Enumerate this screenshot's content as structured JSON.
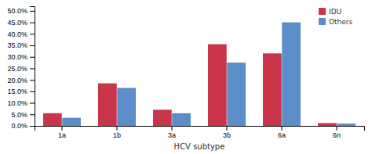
{
  "chart_data": {
    "type": "bar",
    "xlabel": "HCV subtype",
    "categories": [
      "1a",
      "1b",
      "3a",
      "3b",
      "6a",
      "6n"
    ],
    "series": [
      {
        "name": "IDU",
        "color": "#C9364A",
        "values": [
          5.5,
          18.5,
          7.0,
          35.5,
          31.5,
          1.2
        ]
      },
      {
        "name": "Others",
        "color": "#5B8DC8",
        "values": [
          3.5,
          16.5,
          5.5,
          27.5,
          45.0,
          1.0
        ]
      }
    ],
    "ylim": [
      0,
      52
    ],
    "yticks": [
      {
        "value": 0,
        "label": "0.0%"
      },
      {
        "value": 5,
        "label": "5.0%"
      },
      {
        "value": 10,
        "label": "10.0%"
      },
      {
        "value": 15,
        "label": "15.0%"
      },
      {
        "value": 20,
        "label": "20.0%"
      },
      {
        "value": 25,
        "label": "25.0%"
      },
      {
        "value": 30,
        "label": "30.0%"
      },
      {
        "value": 35,
        "label": "35.0%"
      },
      {
        "value": 40,
        "label": "40.0%"
      },
      {
        "value": 45,
        "label": "45.0%"
      },
      {
        "value": 50,
        "label": "50.0%"
      }
    ],
    "grid": false,
    "legend": "upper right"
  }
}
